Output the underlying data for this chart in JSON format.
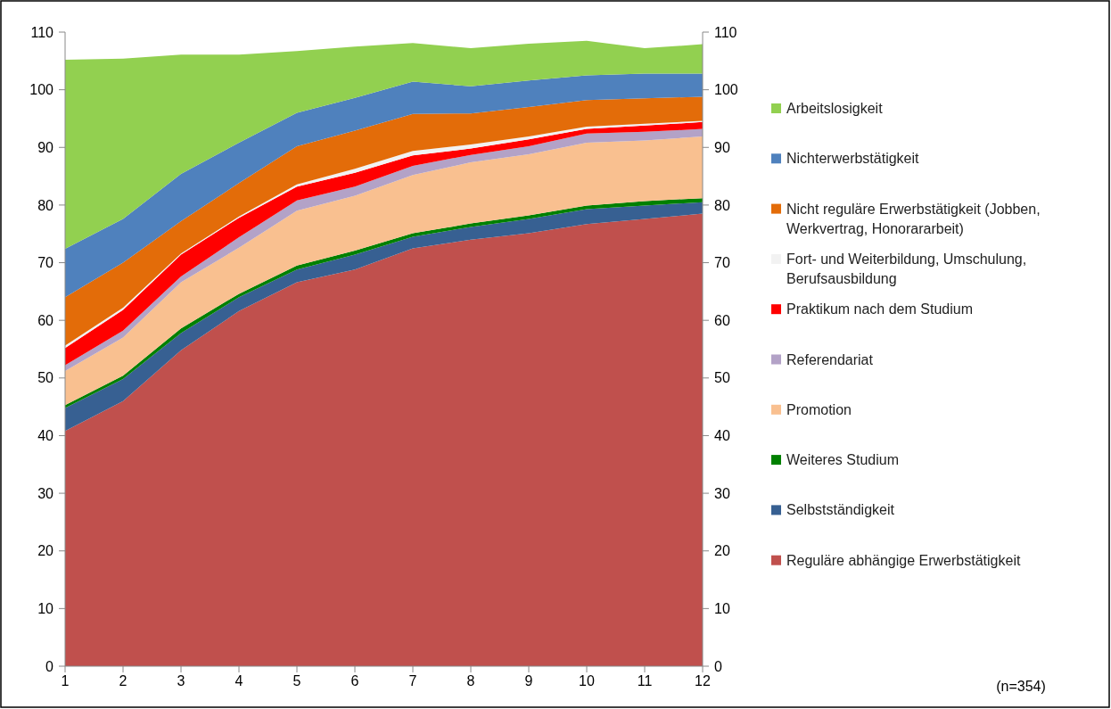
{
  "chart_data": {
    "type": "area",
    "stacked": true,
    "x": [
      1,
      2,
      3,
      4,
      5,
      6,
      7,
      8,
      9,
      10,
      11,
      12
    ],
    "xlim": [
      1,
      12
    ],
    "xticks": [
      1,
      2,
      3,
      4,
      5,
      6,
      7,
      8,
      9,
      10,
      11,
      12
    ],
    "ylim": [
      0,
      110
    ],
    "yticks": [
      0,
      10,
      20,
      30,
      40,
      50,
      60,
      70,
      80,
      90,
      100,
      110
    ],
    "y2lim": [
      0,
      110
    ],
    "y2ticks": [
      0,
      10,
      20,
      30,
      40,
      50,
      60,
      70,
      80,
      90,
      100,
      110
    ],
    "legend": "right",
    "grid": false,
    "annotations": [
      "(n=354)"
    ],
    "series": [
      {
        "name": "Reguläre abhängige Erwerbstätigkeit",
        "color": "#c0504d",
        "values": [
          40.8,
          46.0,
          54.8,
          61.6,
          66.6,
          68.8,
          72.5,
          74.0,
          75.1,
          76.7,
          77.6,
          78.5
        ]
      },
      {
        "name": "Selbstständigkeit",
        "color": "#376092",
        "values": [
          4.0,
          3.8,
          3.0,
          2.4,
          2.2,
          2.6,
          2.0,
          2.2,
          2.5,
          2.6,
          2.3,
          2.0
        ]
      },
      {
        "name": "Weiteres Studium",
        "color": "#008000",
        "values": [
          0.5,
          0.6,
          0.8,
          0.6,
          0.7,
          0.7,
          0.6,
          0.6,
          0.6,
          0.6,
          0.8,
          0.7
        ]
      },
      {
        "name": "Promotion",
        "color": "#f9c090",
        "values": [
          5.9,
          6.6,
          8.0,
          8.0,
          9.5,
          9.5,
          10.1,
          10.6,
          10.6,
          10.9,
          10.5,
          10.7
        ]
      },
      {
        "name": "Referendariat",
        "color": "#b3a2c7",
        "values": [
          1.0,
          1.2,
          1.0,
          1.8,
          1.8,
          1.6,
          1.6,
          1.3,
          1.4,
          1.6,
          1.5,
          1.3
        ]
      },
      {
        "name": "Praktikum nach dem Studium",
        "color": "#ff0000",
        "values": [
          3.0,
          3.6,
          3.8,
          3.4,
          2.4,
          2.4,
          1.8,
          1.1,
          1.2,
          0.8,
          1.1,
          1.2
        ]
      },
      {
        "name": "Fort- und Weiterbildung, Umschulung, Berufsausbildung",
        "color": "#f2f2f2",
        "values": [
          0.4,
          0.4,
          0.2,
          0.2,
          0.4,
          0.7,
          0.8,
          0.7,
          0.5,
          0.4,
          0.3,
          0.2
        ]
      },
      {
        "name": "Nicht reguläre Erwerbstätigkeit (Jobben, Werkvertrag, Honorararbeit)",
        "color": "#e36c09",
        "values": [
          8.4,
          7.8,
          5.6,
          5.8,
          6.6,
          6.6,
          6.4,
          5.4,
          5.1,
          4.6,
          4.4,
          4.2
        ]
      },
      {
        "name": "Nichterwerbstätigkeit",
        "color": "#4f81bd",
        "values": [
          8.4,
          7.6,
          8.2,
          7.0,
          5.8,
          5.7,
          5.6,
          4.7,
          4.6,
          4.3,
          4.3,
          4.0
        ]
      },
      {
        "name": "Arbeitslosigkeit",
        "color": "#92d050",
        "values": [
          32.8,
          27.8,
          20.7,
          15.3,
          10.7,
          8.9,
          6.7,
          6.6,
          6.4,
          6.0,
          4.4,
          5.1
        ]
      }
    ]
  }
}
